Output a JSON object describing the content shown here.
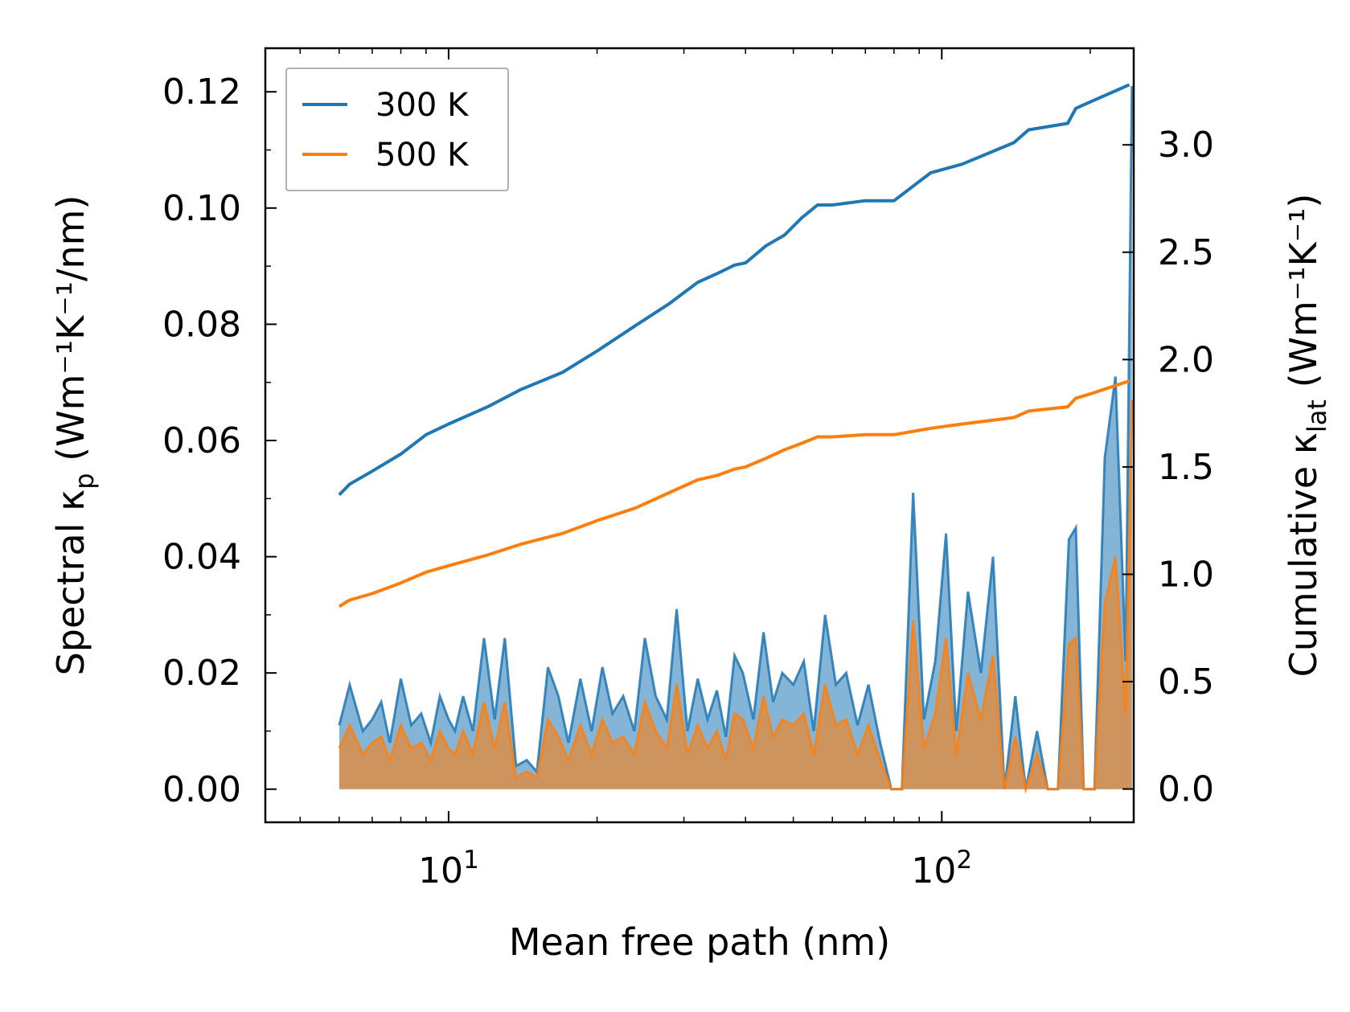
{
  "chart_data": {
    "type": "line+area",
    "title": "",
    "xlabel": "Mean free path (nm)",
    "ylabel": {
      "main": "Spectral κ",
      "sub": "p",
      "units": " (Wm⁻¹K⁻¹/nm)"
    },
    "ylabel2": {
      "main": "Cumulative κ",
      "sub": "lat",
      "units": " (Wm⁻¹K⁻¹)"
    },
    "xscale": "log",
    "xlim": [
      4.25,
      245
    ],
    "ylim": [
      -0.0057,
      0.1275
    ],
    "y2lim": [
      -0.155,
      3.45
    ],
    "xticks": [
      {
        "value": 10,
        "base": "10",
        "exp": "1"
      },
      {
        "value": 100,
        "base": "10",
        "exp": "2"
      }
    ],
    "yticks": [
      "0.00",
      "0.02",
      "0.04",
      "0.06",
      "0.08",
      "0.10",
      "0.12"
    ],
    "y2ticks": [
      "0.0",
      "0.5",
      "1.0",
      "1.5",
      "2.0",
      "2.5",
      "3.0"
    ],
    "legend": {
      "location": "upper-left",
      "entries": [
        "300 K",
        "500 K"
      ]
    },
    "colors": {
      "300 K": "#1f77b4",
      "500 K": "#ff7f0e"
    },
    "series": [
      {
        "name": "300 K",
        "kind": "cumulative",
        "axis": "right",
        "x": [
          6,
          6.3,
          7,
          8,
          9,
          10,
          12,
          14,
          17,
          20,
          24,
          28,
          32,
          35,
          38,
          40,
          44,
          48,
          52,
          56,
          60,
          70,
          80,
          95,
          110,
          140,
          150,
          180,
          187,
          200,
          240
        ],
        "values": [
          1.37,
          1.42,
          1.48,
          1.56,
          1.65,
          1.7,
          1.78,
          1.86,
          1.94,
          2.04,
          2.16,
          2.26,
          2.36,
          2.4,
          2.44,
          2.45,
          2.53,
          2.58,
          2.66,
          2.72,
          2.72,
          2.74,
          2.74,
          2.87,
          2.91,
          3.01,
          3.07,
          3.1,
          3.17,
          3.2,
          3.28
        ]
      },
      {
        "name": "500 K",
        "kind": "cumulative",
        "axis": "right",
        "x": [
          6,
          6.3,
          7,
          8,
          9,
          10,
          12,
          14,
          17,
          20,
          24,
          28,
          32,
          35,
          38,
          40,
          44,
          48,
          52,
          56,
          60,
          70,
          80,
          95,
          110,
          140,
          150,
          180,
          187,
          200,
          240
        ],
        "values": [
          0.85,
          0.88,
          0.91,
          0.96,
          1.01,
          1.04,
          1.09,
          1.14,
          1.19,
          1.25,
          1.31,
          1.38,
          1.44,
          1.46,
          1.49,
          1.5,
          1.54,
          1.58,
          1.61,
          1.64,
          1.64,
          1.65,
          1.65,
          1.68,
          1.7,
          1.73,
          1.76,
          1.78,
          1.82,
          1.84,
          1.9
        ]
      },
      {
        "name": "300 K",
        "kind": "spectral",
        "axis": "left",
        "x": [
          6,
          6.3,
          6.7,
          7,
          7.3,
          7.6,
          8,
          8.4,
          8.8,
          9.2,
          9.6,
          10,
          10.3,
          10.7,
          11.2,
          11.8,
          12.4,
          13,
          13.7,
          14.4,
          15.1,
          15.9,
          16.7,
          17.5,
          18.5,
          19.5,
          20.5,
          21.5,
          22.6,
          23.8,
          25,
          26.3,
          27.7,
          29,
          30.5,
          32,
          33.5,
          35,
          36.5,
          38,
          39.5,
          41.5,
          43.5,
          45.5,
          47.5,
          50,
          52.5,
          55,
          58,
          61,
          64,
          67.5,
          71,
          75,
          79,
          83,
          87.5,
          92,
          97,
          102,
          107,
          113,
          120,
          127,
          134,
          141,
          148,
          156,
          164,
          172,
          181,
          187,
          194,
          204,
          214,
          225,
          236,
          243
        ],
        "values": [
          0.011,
          0.018,
          0.01,
          0.012,
          0.015,
          0.008,
          0.019,
          0.011,
          0.013,
          0.008,
          0.016,
          0.012,
          0.01,
          0.016,
          0.01,
          0.026,
          0.012,
          0.026,
          0.004,
          0.005,
          0.003,
          0.021,
          0.016,
          0.008,
          0.019,
          0.01,
          0.021,
          0.013,
          0.016,
          0.01,
          0.026,
          0.016,
          0.012,
          0.031,
          0.01,
          0.019,
          0.012,
          0.017,
          0.009,
          0.023,
          0.02,
          0.012,
          0.027,
          0.015,
          0.02,
          0.018,
          0.022,
          0.01,
          0.03,
          0.018,
          0.02,
          0.011,
          0.018,
          0.008,
          0.0,
          0.0,
          0.051,
          0.012,
          0.022,
          0.044,
          0.01,
          0.034,
          0.02,
          0.04,
          0.0,
          0.016,
          0.0,
          0.01,
          0.0,
          0.0,
          0.043,
          0.045,
          0.0,
          0.0,
          0.057,
          0.071,
          0.022,
          0.121
        ]
      },
      {
        "name": "500 K",
        "kind": "spectral",
        "axis": "left",
        "x": [
          6,
          6.3,
          6.7,
          7,
          7.3,
          7.6,
          8,
          8.4,
          8.8,
          9.2,
          9.6,
          10,
          10.3,
          10.7,
          11.2,
          11.8,
          12.4,
          13,
          13.7,
          14.4,
          15.1,
          15.9,
          16.7,
          17.5,
          18.5,
          19.5,
          20.5,
          21.5,
          22.6,
          23.8,
          25,
          26.3,
          27.7,
          29,
          30.5,
          32,
          33.5,
          35,
          36.5,
          38,
          39.5,
          41.5,
          43.5,
          45.5,
          47.5,
          50,
          52.5,
          55,
          58,
          61,
          64,
          67.5,
          71,
          75,
          79,
          83,
          87.5,
          92,
          97,
          102,
          107,
          113,
          120,
          127,
          134,
          141,
          148,
          156,
          164,
          172,
          181,
          187,
          194,
          204,
          214,
          225,
          236,
          243
        ],
        "values": [
          0.007,
          0.011,
          0.006,
          0.008,
          0.009,
          0.005,
          0.011,
          0.007,
          0.008,
          0.005,
          0.01,
          0.007,
          0.006,
          0.01,
          0.006,
          0.015,
          0.007,
          0.015,
          0.002,
          0.003,
          0.002,
          0.012,
          0.009,
          0.005,
          0.011,
          0.006,
          0.012,
          0.008,
          0.009,
          0.006,
          0.015,
          0.01,
          0.007,
          0.018,
          0.006,
          0.011,
          0.007,
          0.01,
          0.005,
          0.013,
          0.012,
          0.007,
          0.016,
          0.009,
          0.012,
          0.011,
          0.013,
          0.006,
          0.018,
          0.011,
          0.012,
          0.006,
          0.011,
          0.005,
          0.0,
          0.0,
          0.029,
          0.007,
          0.013,
          0.026,
          0.006,
          0.02,
          0.012,
          0.023,
          0.0,
          0.009,
          0.0,
          0.006,
          0.0,
          0.0,
          0.025,
          0.026,
          0.0,
          0.0,
          0.032,
          0.04,
          0.013,
          0.067
        ]
      }
    ]
  }
}
